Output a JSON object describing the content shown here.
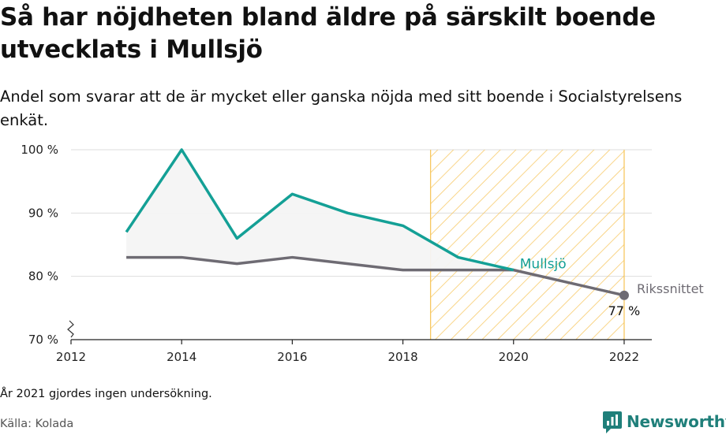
{
  "header": {
    "title": "Så har nöjdheten bland äldre på särskilt boende utvecklats i Mullsjö",
    "subtitle": "Andel som svarar att de är mycket eller ganska nöjda med sitt boende i Socialstyrelsens enkät."
  },
  "footer": {
    "note": "År 2021 gjordes ingen undersökning.",
    "source": "Källa: Kolada",
    "brand": "Newsworthy",
    "brand_icon": "bar-chart-logo-icon"
  },
  "colors": {
    "mullsjo": "#14a096",
    "riks": "#6e6b73",
    "highlight": "#f7c760",
    "grid": "#dddddd",
    "fill": "#f4f4f4"
  },
  "chart_data": {
    "type": "line",
    "title": "Så har nöjdheten bland äldre på särskilt boende utvecklats i Mullsjö",
    "subtitle": "Andel som svarar att de är mycket eller ganska nöjda med sitt boende i Socialstyrelsens enkät.",
    "xlim": [
      2012,
      2022.5
    ],
    "ylim": [
      70,
      100
    ],
    "x_ticks": [
      2012,
      2014,
      2016,
      2018,
      2020,
      2022
    ],
    "y_ticks": [
      70,
      80,
      90,
      100
    ],
    "y_tick_labels": [
      "70 %",
      "80 %",
      "90 %",
      "100 %"
    ],
    "axis_break": true,
    "grid": true,
    "highlight_range": [
      2018.5,
      2022
    ],
    "series": [
      {
        "name": "Mullsjö",
        "x": [
          2013,
          2014,
          2015,
          2016,
          2017,
          2018,
          2019,
          2020
        ],
        "y": [
          87,
          100,
          86,
          93,
          90,
          88,
          83,
          81
        ]
      },
      {
        "name": "Rikssnittet",
        "x": [
          2013,
          2014,
          2015,
          2016,
          2017,
          2018,
          2019,
          2020,
          2022
        ],
        "y": [
          83,
          83,
          82,
          83,
          82,
          81,
          81,
          81,
          77
        ],
        "end_label": "77 %"
      }
    ]
  }
}
